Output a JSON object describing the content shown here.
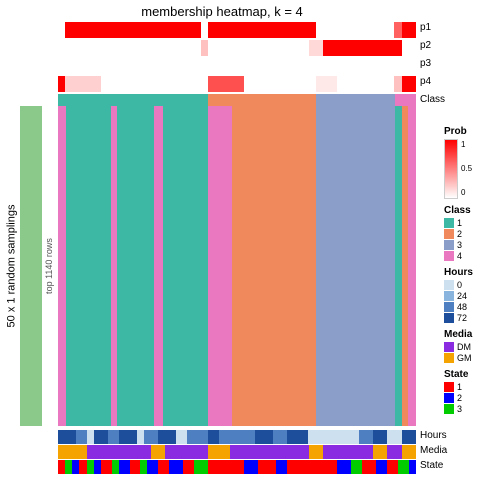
{
  "title": "membership heatmap, k = 4",
  "left_axis_label": "50 x 1 random samplings",
  "rows_label": "top 1140 rows",
  "sampling_bar_color": "#8bc98b",
  "top_tracks": [
    {
      "label": "p1",
      "segs": [
        {
          "w": 0.02,
          "c": "#ffffff"
        },
        {
          "w": 0.38,
          "c": "#ff0000"
        },
        {
          "w": 0.02,
          "c": "#ffffff"
        },
        {
          "w": 0.3,
          "c": "#ff0000"
        },
        {
          "w": 0.08,
          "c": "#ffffff"
        },
        {
          "w": 0.14,
          "c": "#ffffff"
        },
        {
          "w": 0.02,
          "c": "#ff6060"
        },
        {
          "w": 0.04,
          "c": "#ff0000"
        }
      ]
    },
    {
      "label": "p2",
      "segs": [
        {
          "w": 0.4,
          "c": "#ffffff"
        },
        {
          "w": 0.02,
          "c": "#ffc0c0"
        },
        {
          "w": 0.28,
          "c": "#ffffff"
        },
        {
          "w": 0.04,
          "c": "#ffd8d8"
        },
        {
          "w": 0.22,
          "c": "#ff0000"
        },
        {
          "w": 0.04,
          "c": "#ffffff"
        }
      ]
    },
    {
      "label": "p3",
      "segs": [
        {
          "w": 1.0,
          "c": "#ffffff"
        }
      ]
    },
    {
      "label": "p4",
      "segs": [
        {
          "w": 0.02,
          "c": "#ff0000"
        },
        {
          "w": 0.1,
          "c": "#ffd0d0"
        },
        {
          "w": 0.3,
          "c": "#ffffff"
        },
        {
          "w": 0.1,
          "c": "#ff5050"
        },
        {
          "w": 0.2,
          "c": "#ffffff"
        },
        {
          "w": 0.06,
          "c": "#ffe8e8"
        },
        {
          "w": 0.16,
          "c": "#ffffff"
        },
        {
          "w": 0.02,
          "c": "#ffc0c0"
        },
        {
          "w": 0.04,
          "c": "#ff0000"
        }
      ]
    },
    {
      "label": "Class",
      "segs": [
        {
          "w": 0.42,
          "c": "#3cb8a5"
        },
        {
          "w": 0.3,
          "c": "#f08a5d"
        },
        {
          "w": 0.22,
          "c": "#8a9ec9"
        },
        {
          "w": 0.06,
          "c": "#e978c1"
        }
      ]
    }
  ],
  "clusters": [
    {
      "w": 0.42,
      "cols": [
        {
          "w": 0.05,
          "c": "#e978c1"
        },
        {
          "w": 0.3,
          "c": "#3cb8a5"
        },
        {
          "w": 0.04,
          "c": "#e978c1"
        },
        {
          "w": 0.25,
          "c": "#3cb8a5"
        },
        {
          "w": 0.06,
          "c": "#e978c1"
        },
        {
          "w": 0.3,
          "c": "#3cb8a5"
        }
      ]
    },
    {
      "w": 0.3,
      "cols": [
        {
          "w": 0.22,
          "c": "#e978c1"
        },
        {
          "w": 0.78,
          "c": "#f08a5d"
        }
      ]
    },
    {
      "w": 0.22,
      "cols": [
        {
          "w": 1.0,
          "c": "#8a9ec9"
        }
      ]
    },
    {
      "w": 0.06,
      "cols": [
        {
          "w": 0.35,
          "c": "#3cb8a5"
        },
        {
          "w": 0.3,
          "c": "#f08a5d"
        },
        {
          "w": 0.35,
          "c": "#e978c1"
        }
      ]
    }
  ],
  "bottom_tracks": [
    {
      "label": "Hours",
      "segs": [
        {
          "w": 0.05,
          "c": "#1c4e9c"
        },
        {
          "w": 0.03,
          "c": "#4d7fc1"
        },
        {
          "w": 0.02,
          "c": "#cde0f0"
        },
        {
          "w": 0.04,
          "c": "#1c4e9c"
        },
        {
          "w": 0.03,
          "c": "#4d7fc1"
        },
        {
          "w": 0.05,
          "c": "#1c4e9c"
        },
        {
          "w": 0.02,
          "c": "#cde0f0"
        },
        {
          "w": 0.04,
          "c": "#4d7fc1"
        },
        {
          "w": 0.05,
          "c": "#1c4e9c"
        },
        {
          "w": 0.03,
          "c": "#cde0f0"
        },
        {
          "w": 0.06,
          "c": "#4d7fc1"
        },
        {
          "w": 0.03,
          "c": "#1c4e9c"
        },
        {
          "w": 0.1,
          "c": "#4d7fc1"
        },
        {
          "w": 0.05,
          "c": "#1c4e9c"
        },
        {
          "w": 0.04,
          "c": "#4d7fc1"
        },
        {
          "w": 0.06,
          "c": "#1c4e9c"
        },
        {
          "w": 0.14,
          "c": "#cde0f0"
        },
        {
          "w": 0.04,
          "c": "#4d7fc1"
        },
        {
          "w": 0.04,
          "c": "#1c4e9c"
        },
        {
          "w": 0.04,
          "c": "#cde0f0"
        },
        {
          "w": 0.04,
          "c": "#1c4e9c"
        }
      ]
    },
    {
      "label": "Media",
      "segs": [
        {
          "w": 0.08,
          "c": "#f4a300"
        },
        {
          "w": 0.18,
          "c": "#8a2be2"
        },
        {
          "w": 0.04,
          "c": "#f4a300"
        },
        {
          "w": 0.12,
          "c": "#8a2be2"
        },
        {
          "w": 0.06,
          "c": "#f4a300"
        },
        {
          "w": 0.22,
          "c": "#8a2be2"
        },
        {
          "w": 0.04,
          "c": "#f4a300"
        },
        {
          "w": 0.14,
          "c": "#8a2be2"
        },
        {
          "w": 0.04,
          "c": "#f4a300"
        },
        {
          "w": 0.04,
          "c": "#8a2be2"
        },
        {
          "w": 0.04,
          "c": "#f4a300"
        }
      ]
    },
    {
      "label": "State",
      "segs": [
        {
          "w": 0.02,
          "c": "#ff0000"
        },
        {
          "w": 0.02,
          "c": "#00cc00"
        },
        {
          "w": 0.02,
          "c": "#0000ff"
        },
        {
          "w": 0.02,
          "c": "#ff0000"
        },
        {
          "w": 0.02,
          "c": "#00cc00"
        },
        {
          "w": 0.02,
          "c": "#0000ff"
        },
        {
          "w": 0.03,
          "c": "#ff0000"
        },
        {
          "w": 0.02,
          "c": "#00cc00"
        },
        {
          "w": 0.03,
          "c": "#0000ff"
        },
        {
          "w": 0.03,
          "c": "#ff0000"
        },
        {
          "w": 0.02,
          "c": "#00cc00"
        },
        {
          "w": 0.03,
          "c": "#0000ff"
        },
        {
          "w": 0.03,
          "c": "#ff0000"
        },
        {
          "w": 0.04,
          "c": "#0000ff"
        },
        {
          "w": 0.03,
          "c": "#ff0000"
        },
        {
          "w": 0.04,
          "c": "#00cc00"
        },
        {
          "w": 0.1,
          "c": "#ff0000"
        },
        {
          "w": 0.04,
          "c": "#0000ff"
        },
        {
          "w": 0.05,
          "c": "#ff0000"
        },
        {
          "w": 0.03,
          "c": "#0000ff"
        },
        {
          "w": 0.14,
          "c": "#ff0000"
        },
        {
          "w": 0.04,
          "c": "#0000ff"
        },
        {
          "w": 0.03,
          "c": "#00cc00"
        },
        {
          "w": 0.04,
          "c": "#ff0000"
        },
        {
          "w": 0.03,
          "c": "#0000ff"
        },
        {
          "w": 0.03,
          "c": "#ff0000"
        },
        {
          "w": 0.03,
          "c": "#00cc00"
        },
        {
          "w": 0.02,
          "c": "#0000ff"
        }
      ]
    }
  ],
  "legend": {
    "prob": {
      "title": "Prob",
      "ticks": [
        "1",
        "0.5",
        "0"
      ]
    },
    "class": {
      "title": "Class",
      "items": [
        {
          "l": "1",
          "c": "#3cb8a5"
        },
        {
          "l": "2",
          "c": "#f08a5d"
        },
        {
          "l": "3",
          "c": "#8a9ec9"
        },
        {
          "l": "4",
          "c": "#e978c1"
        }
      ]
    },
    "hours": {
      "title": "Hours",
      "items": [
        {
          "l": "0",
          "c": "#cde0f0"
        },
        {
          "l": "24",
          "c": "#88b4de"
        },
        {
          "l": "48",
          "c": "#4d7fc1"
        },
        {
          "l": "72",
          "c": "#1c4e9c"
        }
      ]
    },
    "media": {
      "title": "Media",
      "items": [
        {
          "l": "DM",
          "c": "#8a2be2"
        },
        {
          "l": "GM",
          "c": "#f4a300"
        }
      ]
    },
    "state": {
      "title": "State",
      "items": [
        {
          "l": "1",
          "c": "#ff0000"
        },
        {
          "l": "2",
          "c": "#0000ff"
        },
        {
          "l": "3",
          "c": "#00cc00"
        }
      ]
    }
  }
}
